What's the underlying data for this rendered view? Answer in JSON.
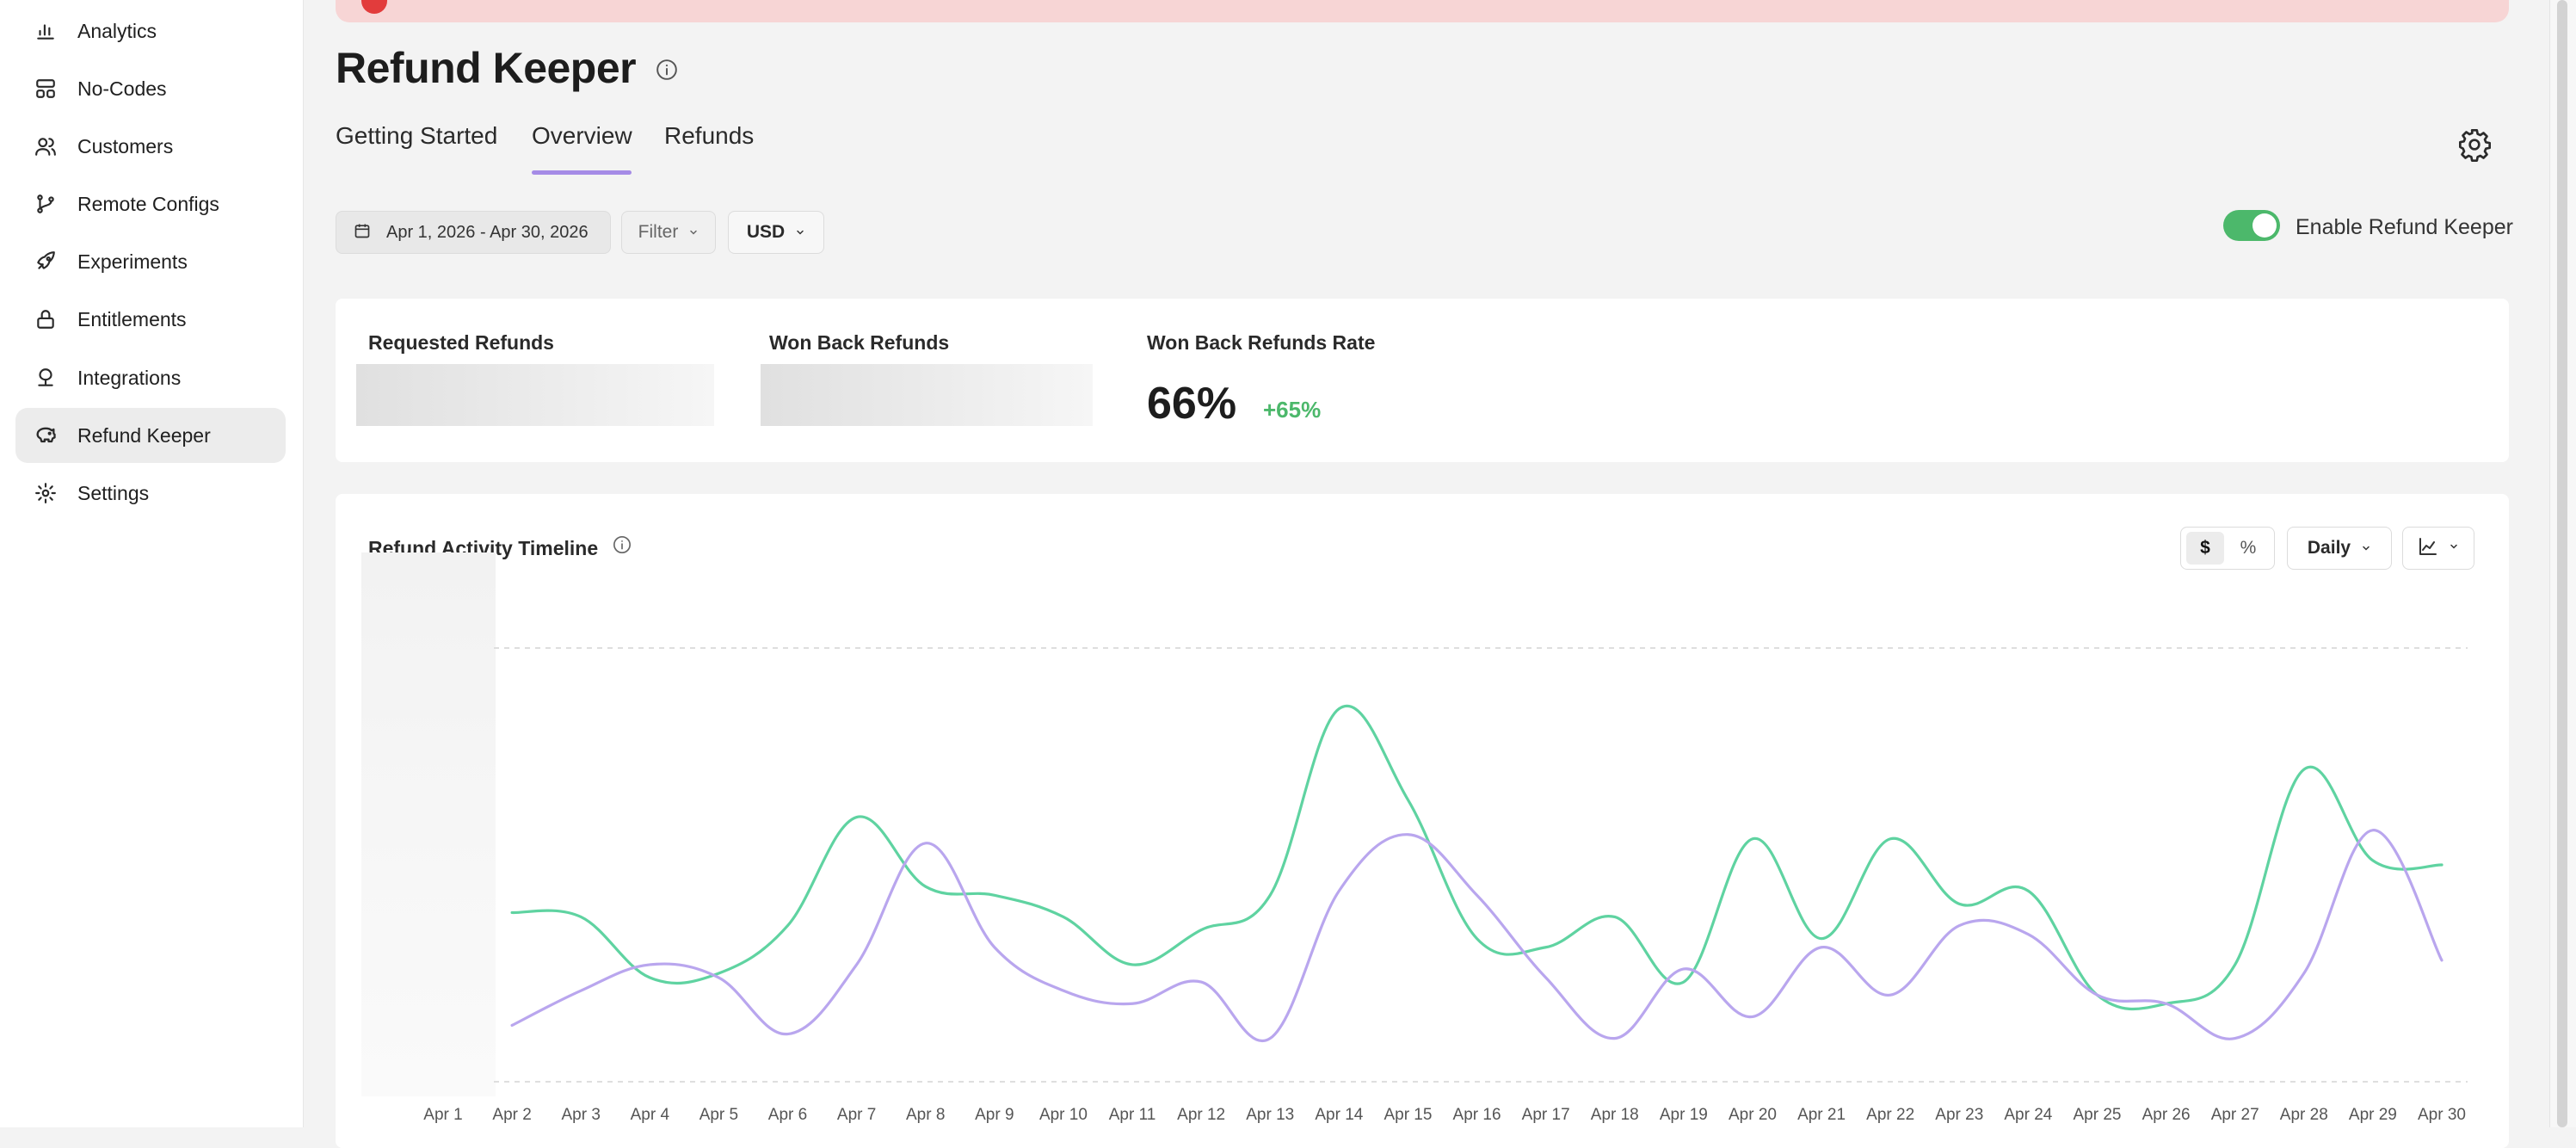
{
  "sidebar": {
    "items": [
      {
        "label": "Analytics",
        "icon": "bar-chart-icon"
      },
      {
        "label": "No-Codes",
        "icon": "layout-icon"
      },
      {
        "label": "Customers",
        "icon": "users-icon"
      },
      {
        "label": "Remote Configs",
        "icon": "git-branch-icon"
      },
      {
        "label": "Experiments",
        "icon": "rocket-icon"
      },
      {
        "label": "Entitlements",
        "icon": "lock-icon"
      },
      {
        "label": "Integrations",
        "icon": "integration-icon"
      },
      {
        "label": "Refund Keeper",
        "icon": "piggy-bank-icon",
        "active": true
      },
      {
        "label": "Settings",
        "icon": "gear-icon"
      }
    ]
  },
  "page": {
    "title": "Refund Keeper"
  },
  "tabs": [
    {
      "label": "Getting Started"
    },
    {
      "label": "Overview",
      "active": true
    },
    {
      "label": "Refunds"
    }
  ],
  "controls": {
    "date_range": "Apr 1, 2026 - Apr 30, 2026",
    "filter_label": "Filter",
    "currency": "USD",
    "toggle_label": "Enable Refund Keeper",
    "toggle_on": true
  },
  "stats": {
    "requested_label": "Requested Refunds",
    "won_back_label": "Won Back Refunds",
    "rate_label": "Won Back Refunds Rate",
    "rate_value": "66%",
    "rate_change": "+65%"
  },
  "chart_header": {
    "title": "Refund Activity Timeline",
    "unit_dollar": "$",
    "unit_percent": "%",
    "granularity": "Daily"
  },
  "colors": {
    "accent": "#a58be6",
    "positive": "#4cb86b",
    "series_green": "#5fd3a1",
    "series_purple": "#b9a6ee"
  },
  "chart_data": {
    "type": "line",
    "categories": [
      "Apr 1",
      "Apr 2",
      "Apr 3",
      "Apr 4",
      "Apr 5",
      "Apr 6",
      "Apr 7",
      "Apr 8",
      "Apr 9",
      "Apr 10",
      "Apr 11",
      "Apr 12",
      "Apr 13",
      "Apr 14",
      "Apr 15",
      "Apr 16",
      "Apr 17",
      "Apr 18",
      "Apr 19",
      "Apr 20",
      "Apr 21",
      "Apr 22",
      "Apr 23",
      "Apr 24",
      "Apr 25",
      "Apr 26",
      "Apr 27",
      "Apr 28",
      "Apr 29",
      "Apr 30"
    ],
    "series": [
      {
        "color": "#5fd3a1",
        "values": [
          null,
          39,
          38,
          24,
          25,
          36,
          61,
          45,
          43,
          38,
          27,
          35,
          43,
          86,
          65,
          33,
          31,
          38,
          23,
          56,
          33,
          56,
          41,
          44,
          20,
          18,
          27,
          72,
          51,
          50
        ]
      },
      {
        "color": "#b9a6ee",
        "values": [
          null,
          13,
          21,
          27,
          24,
          11,
          27,
          55,
          31,
          21,
          18,
          23,
          10,
          44,
          57,
          43,
          24,
          10,
          26,
          15,
          31,
          20,
          36,
          34,
          20,
          18,
          10,
          25,
          58,
          28
        ]
      }
    ],
    "ylim": [
      0,
      100
    ],
    "grid": true,
    "legend": "none"
  }
}
